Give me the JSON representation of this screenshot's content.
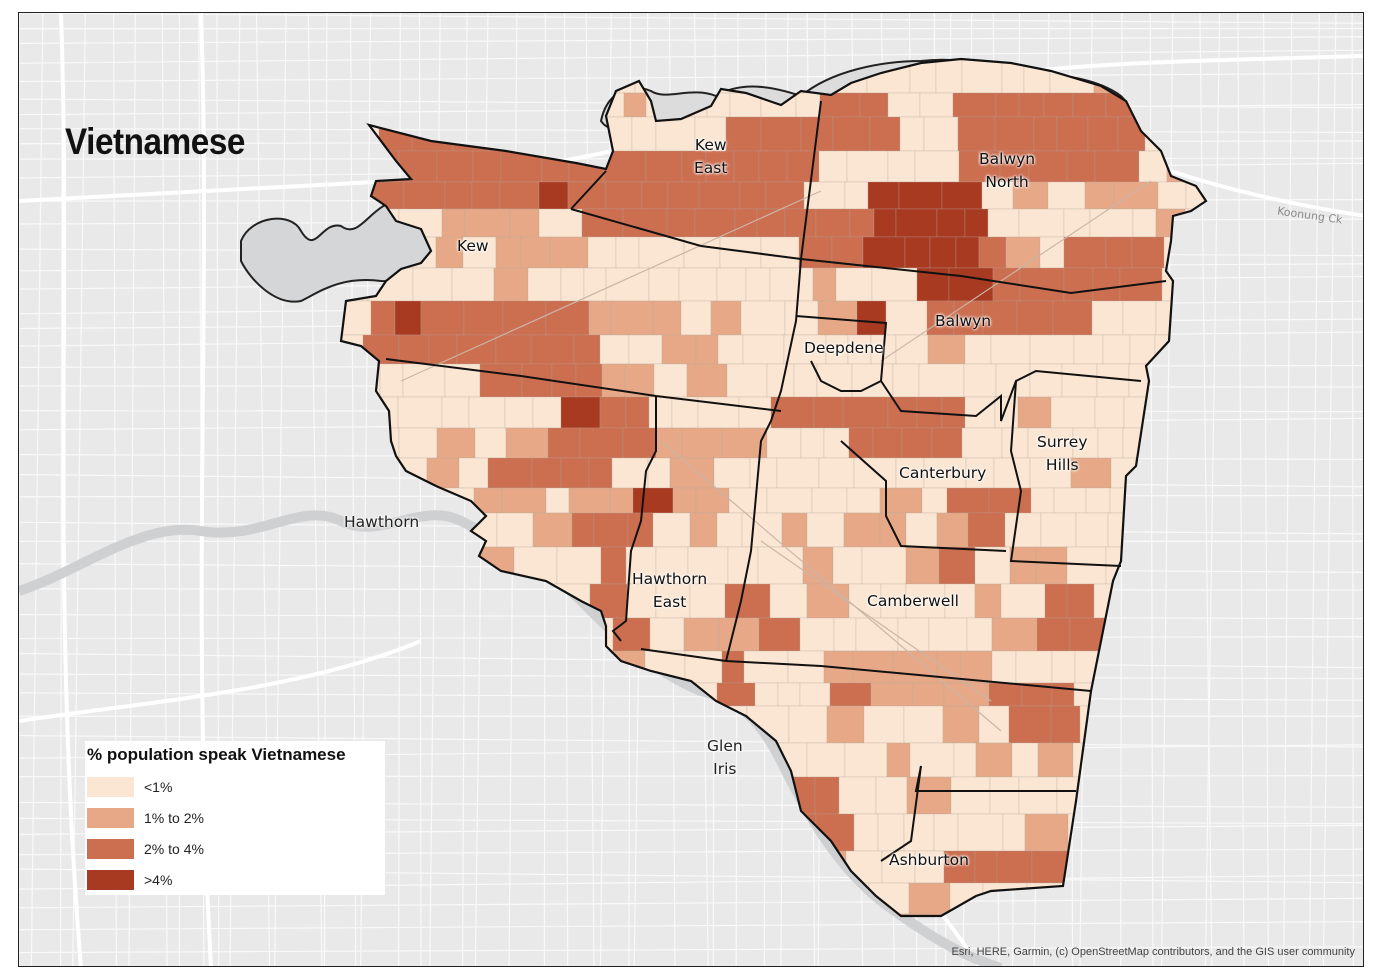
{
  "map": {
    "title": "Vietnamese",
    "attribution": "Esri, HERE, Garmin, (c) OpenStreetMap contributors, and the GIS user community",
    "road_label": "Koonung Ck",
    "suburbs_inside": [
      {
        "id": "kew",
        "label": "Kew"
      },
      {
        "id": "kew-east",
        "label": "Kew\nEast"
      },
      {
        "id": "balwyn-north",
        "label": "Balwyn\nNorth"
      },
      {
        "id": "balwyn",
        "label": "Balwyn"
      },
      {
        "id": "deepdene",
        "label": "Deepdene"
      },
      {
        "id": "surrey-hills",
        "label": "Surrey\nHills"
      },
      {
        "id": "canterbury",
        "label": "Canterbury"
      },
      {
        "id": "hawthorn-east",
        "label": "Hawthorn\nEast"
      },
      {
        "id": "camberwell",
        "label": "Camberwell"
      },
      {
        "id": "ashburton",
        "label": "Ashburton"
      }
    ],
    "suburbs_outside": [
      {
        "id": "hawthorn",
        "label": "Hawthorn"
      },
      {
        "id": "glen-iris",
        "label": "Glen\nIris"
      }
    ],
    "legend": {
      "title": "% population speak Vietnamese",
      "classes": [
        {
          "label": "<1%",
          "color": "#fbe6d3"
        },
        {
          "label": "1% to 2%",
          "color": "#e6a887"
        },
        {
          "label": "2% to 4%",
          "color": "#cc6e50"
        },
        {
          "label": ">4%",
          "color": "#a83a22"
        }
      ]
    },
    "colors": {
      "basemap": "#e9e9e9",
      "water": "#d4d6d8",
      "road": "#ffffff",
      "boundary": "#111111"
    }
  }
}
